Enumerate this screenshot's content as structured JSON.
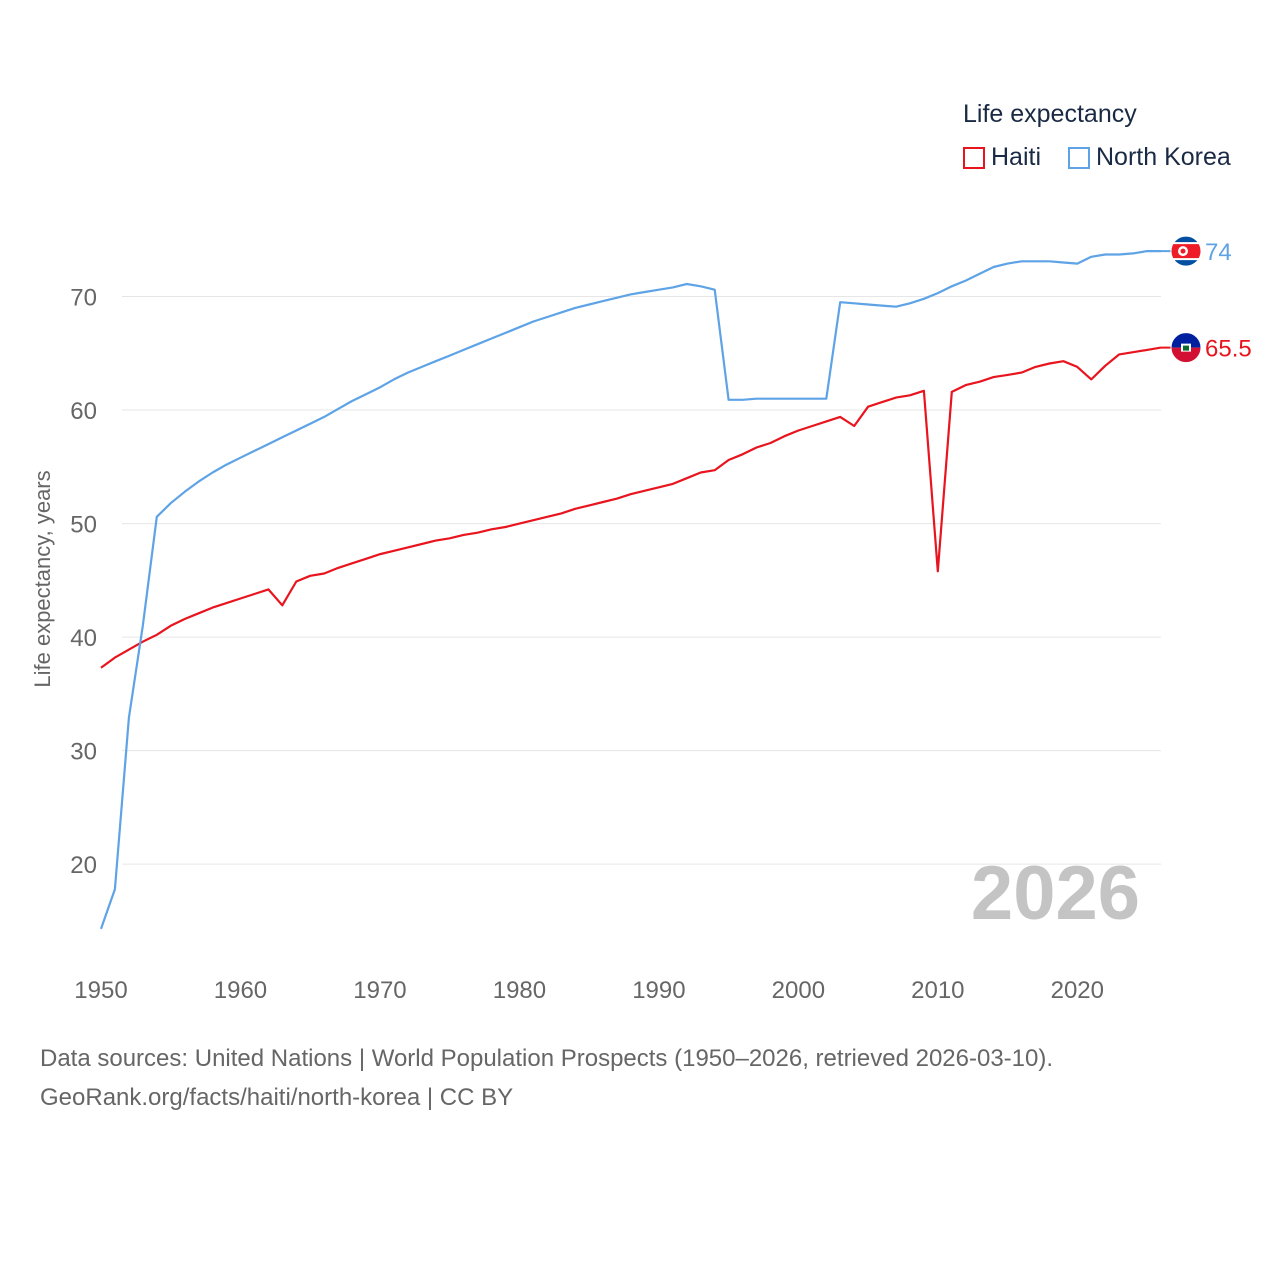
{
  "chart_data": {
    "type": "line",
    "title": "Life expectancy",
    "ylabel": "Life expectancy, years",
    "xlabel": "",
    "xlim": [
      1950,
      2026
    ],
    "ylim": [
      12,
      80
    ],
    "grid": true,
    "year_label": "2026",
    "x_ticks": [
      1950,
      1960,
      1970,
      1980,
      1990,
      2000,
      2010,
      2020
    ],
    "y_ticks": [
      20,
      30,
      40,
      50,
      60,
      70
    ],
    "x": [
      1950,
      1951,
      1952,
      1953,
      1954,
      1955,
      1956,
      1957,
      1958,
      1959,
      1960,
      1961,
      1962,
      1963,
      1964,
      1965,
      1966,
      1967,
      1968,
      1969,
      1970,
      1971,
      1972,
      1973,
      1974,
      1975,
      1976,
      1977,
      1978,
      1979,
      1980,
      1981,
      1982,
      1983,
      1984,
      1985,
      1986,
      1987,
      1988,
      1989,
      1990,
      1991,
      1992,
      1993,
      1994,
      1995,
      1996,
      1997,
      1998,
      1999,
      2000,
      2001,
      2002,
      2003,
      2004,
      2005,
      2006,
      2007,
      2008,
      2009,
      2010,
      2011,
      2012,
      2013,
      2014,
      2015,
      2016,
      2017,
      2018,
      2019,
      2020,
      2021,
      2022,
      2023,
      2024,
      2025,
      2026
    ],
    "series": [
      {
        "name": "Haiti",
        "color": "#e8141e",
        "end_label": "65.5",
        "flag": "haiti-flag",
        "values": [
          37.3,
          38.2,
          38.9,
          39.6,
          40.2,
          41.0,
          41.6,
          42.1,
          42.6,
          43.0,
          43.4,
          43.8,
          44.2,
          42.8,
          44.9,
          45.4,
          45.6,
          46.1,
          46.5,
          46.9,
          47.3,
          47.6,
          47.9,
          48.2,
          48.5,
          48.7,
          49.0,
          49.2,
          49.5,
          49.7,
          50.0,
          50.3,
          50.6,
          50.9,
          51.3,
          51.6,
          51.9,
          52.2,
          52.6,
          52.9,
          53.2,
          53.5,
          54.0,
          54.5,
          54.7,
          55.6,
          56.1,
          56.7,
          57.1,
          57.7,
          58.2,
          58.6,
          59.0,
          59.4,
          58.6,
          60.3,
          60.7,
          61.1,
          61.3,
          61.7,
          45.8,
          61.6,
          62.2,
          62.5,
          62.9,
          63.1,
          63.3,
          63.8,
          64.1,
          64.3,
          63.8,
          62.7,
          63.9,
          64.9,
          65.1,
          65.3,
          65.5
        ]
      },
      {
        "name": "North Korea",
        "color": "#5ea3e6",
        "end_label": "74",
        "flag": "north-korea-flag",
        "values": [
          14.3,
          17.8,
          32.9,
          41.0,
          50.6,
          51.8,
          52.8,
          53.7,
          54.5,
          55.2,
          55.8,
          56.4,
          57.0,
          57.6,
          58.2,
          58.8,
          59.4,
          60.1,
          60.8,
          61.4,
          62.0,
          62.7,
          63.3,
          63.8,
          64.3,
          64.8,
          65.3,
          65.8,
          66.3,
          66.8,
          67.3,
          67.8,
          68.2,
          68.6,
          69.0,
          69.3,
          69.6,
          69.9,
          70.2,
          70.4,
          70.6,
          70.8,
          71.1,
          70.9,
          70.6,
          60.9,
          60.9,
          61.0,
          61.0,
          61.0,
          61.0,
          61.0,
          61.0,
          69.5,
          69.4,
          69.3,
          69.2,
          69.1,
          69.4,
          69.8,
          70.3,
          70.9,
          71.4,
          72.0,
          72.6,
          72.9,
          73.1,
          73.1,
          73.1,
          73.0,
          72.9,
          73.5,
          73.7,
          73.7,
          73.8,
          74.0,
          74.0
        ]
      }
    ]
  },
  "legend": {
    "title": "Life expectancy",
    "items": [
      {
        "label": "Haiti",
        "color": "#e8141e"
      },
      {
        "label": "North Korea",
        "color": "#5ea3e6"
      }
    ]
  },
  "footer": {
    "sources": "Data sources: United Nations | World Population Prospects (1950–2026, retrieved 2026-03-10).",
    "link": "GeoRank.org/facts/haiti/north-korea | CC BY"
  }
}
